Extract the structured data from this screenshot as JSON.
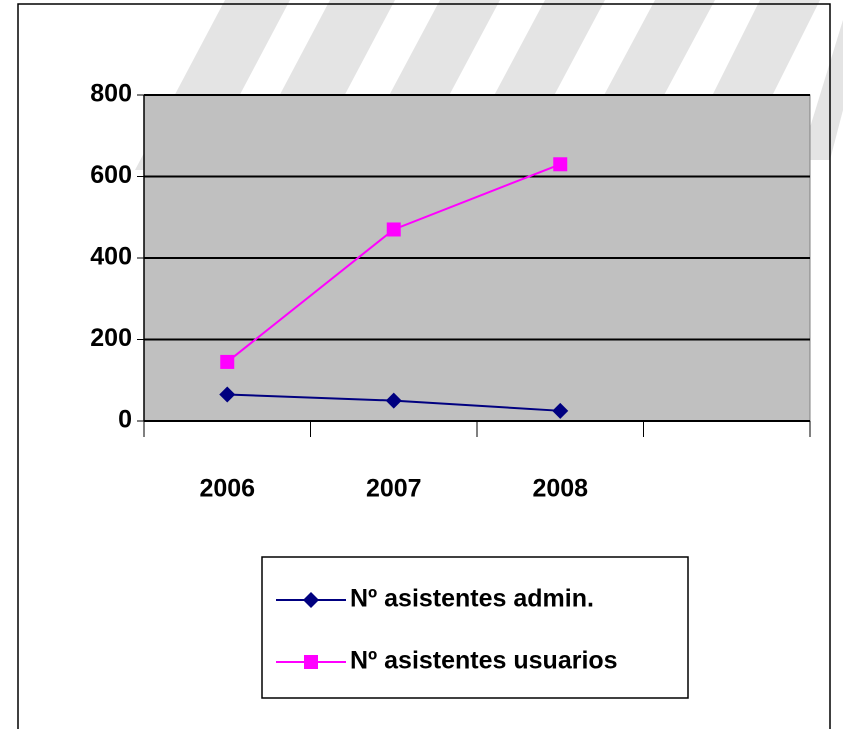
{
  "chart_data": {
    "type": "line",
    "categories": [
      "2006",
      "2007",
      "2008",
      null
    ],
    "series": [
      {
        "name": "Nº asistentes admin.",
        "color": "#000080",
        "marker": "diamond",
        "values": [
          65,
          50,
          25,
          null
        ]
      },
      {
        "name": "Nº asistentes usuarios",
        "color": "#ff00ff",
        "marker": "square",
        "values": [
          145,
          470,
          630,
          null
        ]
      }
    ],
    "ylim": [
      0,
      800
    ],
    "yticks": [
      0,
      200,
      400,
      600,
      800
    ],
    "grid": true,
    "legend": "bottom"
  }
}
